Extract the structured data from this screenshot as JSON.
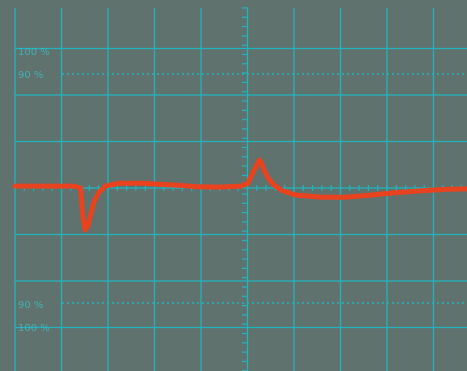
{
  "chart_data": {
    "type": "line",
    "title": "",
    "xlabel": "",
    "ylabel": "",
    "grid": true,
    "level_labels": {
      "top_100": "100 %",
      "top_90": "90 %",
      "bottom_90": "90 %",
      "bottom_100": "100 %"
    },
    "xlim": [
      0,
      10
    ],
    "ylim": [
      -4,
      4
    ],
    "series": [
      {
        "x": [
          0,
          0.6,
          1.3,
          1.45,
          1.5,
          1.55,
          1.62,
          1.68,
          1.75,
          1.85,
          2.0,
          2.3,
          2.8,
          3.2,
          3.6,
          4.0,
          4.5,
          5.0,
          5.15,
          5.3,
          5.4,
          5.45,
          5.5,
          5.58,
          5.65,
          5.75,
          5.9,
          6.2,
          6.8,
          7.3,
          7.8,
          8.4,
          9.0,
          9.5,
          10.0
        ],
        "y": [
          0.04,
          0.04,
          0.04,
          0.0,
          -0.6,
          -0.9,
          -0.8,
          -0.55,
          -0.3,
          -0.1,
          0.04,
          0.1,
          0.1,
          0.08,
          0.06,
          0.03,
          0.02,
          0.04,
          0.1,
          0.4,
          0.6,
          0.55,
          0.4,
          0.25,
          0.15,
          0.05,
          -0.05,
          -0.15,
          -0.2,
          -0.2,
          -0.16,
          -0.1,
          -0.06,
          -0.03,
          -0.02
        ]
      }
    ],
    "colors": {
      "screen": "#5f726d",
      "grid": "#21b4bf",
      "trace": "#e8421e",
      "label": "#3cc3cc"
    }
  }
}
